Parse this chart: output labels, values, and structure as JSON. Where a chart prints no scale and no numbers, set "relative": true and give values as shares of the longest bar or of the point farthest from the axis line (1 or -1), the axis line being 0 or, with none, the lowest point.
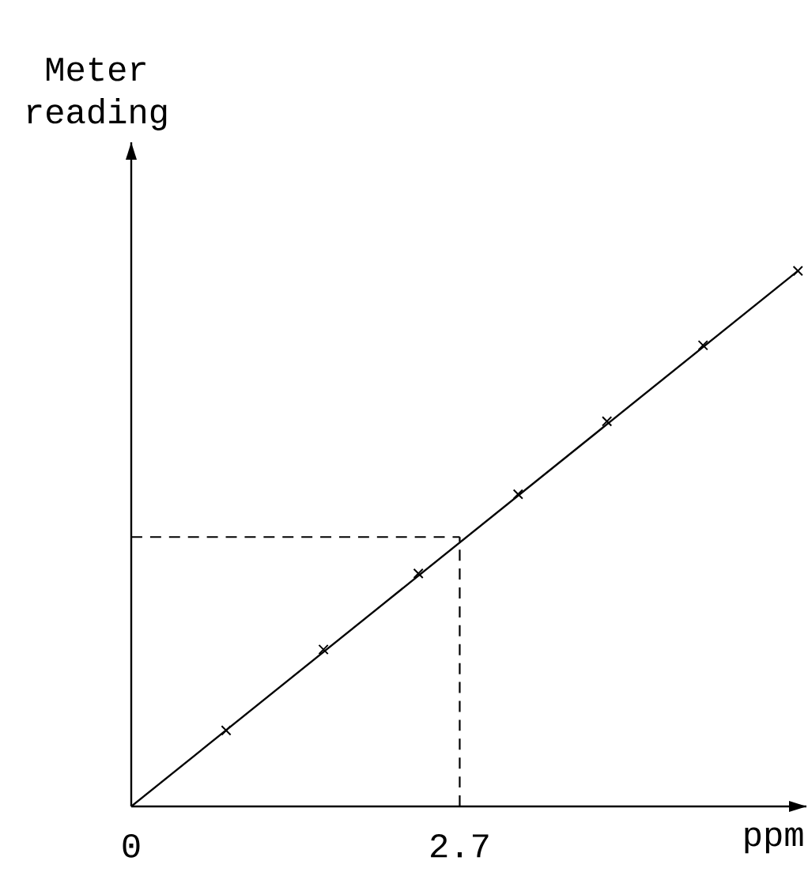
{
  "chart_data": {
    "type": "line",
    "relative": true,
    "xlabel": "ppm",
    "ylabel": "Meter reading",
    "xlim": [
      0,
      5.55
    ],
    "xticks": [
      0,
      2.7
    ],
    "series": [
      {
        "color": "#000000",
        "x": [
          0,
          5.48
        ],
        "values": [
          0,
          1
        ]
      },
      {
        "type": "scatter",
        "marker": "cross",
        "color": "#000000",
        "x": [
          0.78,
          1.58,
          2.36,
          3.18,
          3.91,
          4.7,
          5.48
        ],
        "values": [
          0.142,
          0.293,
          0.435,
          0.583,
          0.719,
          0.861,
          1
        ]
      }
    ],
    "ref_lines": [
      {
        "axis": "x",
        "value": 2.7,
        "line_style": "dashed"
      },
      {
        "axis": "y",
        "value": 0.503,
        "line_style": "dashed"
      }
    ]
  }
}
